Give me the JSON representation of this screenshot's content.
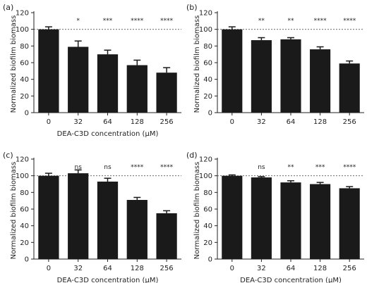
{
  "chart_data": [
    {
      "type": "bar",
      "panel_label": "(a)",
      "categories": [
        "0",
        "32",
        "64",
        "128",
        "256"
      ],
      "values": [
        100,
        79,
        70,
        57,
        48
      ],
      "errors": [
        3,
        7,
        5,
        6,
        6
      ],
      "significance": [
        "",
        "*",
        "***",
        "****",
        "****"
      ],
      "xlabel": "DEA-C3D concentration (μM)",
      "ylabel": "Normalized biofilm biomass",
      "ylim": [
        0,
        120
      ],
      "yticks": [
        0,
        20,
        40,
        60,
        80,
        100,
        120
      ],
      "reference_line": 100,
      "bar_color": "#1a1a1a"
    },
    {
      "type": "bar",
      "panel_label": "(b)",
      "categories": [
        "0",
        "32",
        "64",
        "128",
        "256"
      ],
      "values": [
        100,
        87,
        88,
        76,
        59
      ],
      "errors": [
        3,
        3,
        2,
        3,
        3
      ],
      "significance": [
        "",
        "**",
        "**",
        "****",
        "****"
      ],
      "xlabel": "",
      "ylabel": "Normalized biofilm biomass",
      "ylim": [
        0,
        120
      ],
      "yticks": [
        0,
        20,
        40,
        60,
        80,
        100,
        120
      ],
      "reference_line": 100,
      "bar_color": "#1a1a1a"
    },
    {
      "type": "bar",
      "panel_label": "(c)",
      "categories": [
        "0",
        "32",
        "64",
        "128",
        "256"
      ],
      "values": [
        100,
        103,
        93,
        71,
        55
      ],
      "errors": [
        3,
        4,
        4,
        3,
        3
      ],
      "significance": [
        "",
        "ns",
        "ns",
        "****",
        "****"
      ],
      "xlabel": "DEA-C3D concentration (μM)",
      "ylabel": "Normalized biofilm biomass",
      "ylim": [
        0,
        120
      ],
      "yticks": [
        0,
        20,
        40,
        60,
        80,
        100,
        120
      ],
      "reference_line": 100,
      "bar_color": "#1a1a1a"
    },
    {
      "type": "bar",
      "panel_label": "(d)",
      "categories": [
        "0",
        "32",
        "64",
        "128",
        "256"
      ],
      "values": [
        100,
        98,
        92,
        90,
        85
      ],
      "errors": [
        1,
        1,
        2,
        2,
        2
      ],
      "significance": [
        "",
        "ns",
        "**",
        "***",
        "****"
      ],
      "xlabel": "DEA-C3D concentration (μM)",
      "ylabel": "Normalized biofilm biomass",
      "ylim": [
        0,
        120
      ],
      "yticks": [
        0,
        20,
        40,
        60,
        80,
        100,
        120
      ],
      "reference_line": 100,
      "bar_color": "#1a1a1a"
    }
  ]
}
